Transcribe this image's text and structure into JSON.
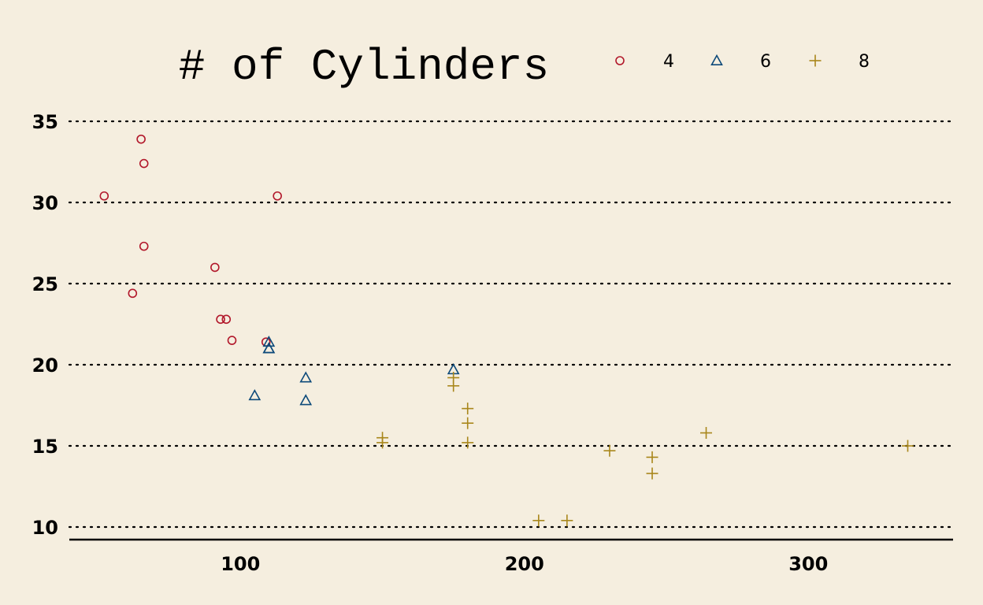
{
  "chart_data": {
    "type": "scatter",
    "title": "# of Cylinders",
    "xlabel": "",
    "ylabel": "",
    "xlim": [
      40,
      350
    ],
    "ylim": [
      9.2,
      36
    ],
    "xticks": [
      100,
      200,
      300
    ],
    "yticks": [
      10,
      15,
      20,
      25,
      30,
      35
    ],
    "grid": "horizontal-dotted",
    "legend_position": "top",
    "series": [
      {
        "name": "4",
        "marker": "circle",
        "color": "#b2182b",
        "points": [
          [
            52,
            30.4
          ],
          [
            65,
            33.9
          ],
          [
            66,
            32.4
          ],
          [
            66,
            27.3
          ],
          [
            62,
            24.4
          ],
          [
            91,
            26.0
          ],
          [
            113,
            30.4
          ],
          [
            93,
            22.8
          ],
          [
            95,
            22.8
          ],
          [
            97,
            21.5
          ],
          [
            109,
            21.4
          ]
        ]
      },
      {
        "name": "6",
        "marker": "triangle",
        "color": "#0d4a7a",
        "points": [
          [
            110,
            21.0
          ],
          [
            110,
            21.0
          ],
          [
            110,
            21.4
          ],
          [
            105,
            18.1
          ],
          [
            123,
            19.2
          ],
          [
            123,
            17.8
          ],
          [
            175,
            19.7
          ]
        ]
      },
      {
        "name": "8",
        "marker": "plus",
        "color": "#a8861a",
        "points": [
          [
            175,
            18.7
          ],
          [
            175,
            19.2
          ],
          [
            180,
            17.3
          ],
          [
            180,
            16.4
          ],
          [
            180,
            15.2
          ],
          [
            150,
            15.5
          ],
          [
            150,
            15.2
          ],
          [
            205,
            10.4
          ],
          [
            215,
            10.4
          ],
          [
            230,
            14.7
          ],
          [
            245,
            14.3
          ],
          [
            245,
            13.3
          ],
          [
            264,
            15.8
          ],
          [
            335,
            15.0
          ]
        ]
      }
    ]
  }
}
